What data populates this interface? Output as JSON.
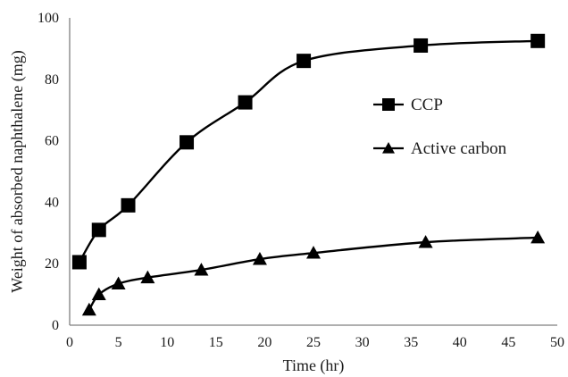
{
  "chart_data": {
    "type": "line",
    "xlabel": "Time (hr)",
    "ylabel": "Weight of absorbed naphthalene (mg)",
    "xlim": [
      0,
      50
    ],
    "ylim": [
      0,
      100
    ],
    "x_ticks": [
      0,
      5,
      10,
      15,
      20,
      25,
      30,
      35,
      40,
      45,
      50
    ],
    "y_ticks": [
      0,
      20,
      40,
      60,
      80,
      100
    ],
    "x_tick_labels": [
      "0",
      "5",
      "10",
      "15",
      "20",
      "25",
      "30",
      "35",
      "40",
      "45",
      "50"
    ],
    "y_tick_labels": [
      "0",
      "20",
      "40",
      "60",
      "80",
      "100"
    ],
    "grid": false,
    "legend_position": "right",
    "series": [
      {
        "name": "CCP",
        "marker": "square",
        "color": "#000000",
        "x": [
          1,
          3,
          6,
          12,
          18,
          24,
          36,
          48
        ],
        "y": [
          20.5,
          31,
          39,
          59.5,
          72.5,
          86,
          91,
          92.5
        ]
      },
      {
        "name": "Active carbon",
        "marker": "triangle",
        "color": "#000000",
        "x": [
          2,
          3,
          5,
          8,
          13.5,
          19.5,
          25,
          36.5,
          48
        ],
        "y": [
          5,
          10,
          13.5,
          15.5,
          18,
          21.5,
          23.5,
          27,
          28.5
        ]
      }
    ]
  }
}
